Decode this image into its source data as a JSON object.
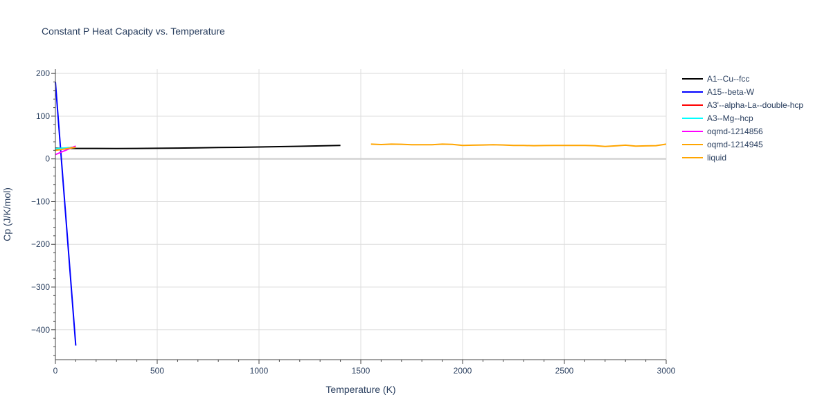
{
  "chart_data": {
    "type": "line",
    "title": "Constant P Heat Capacity vs. Temperature",
    "xlabel": "Temperature (K)",
    "ylabel": "Cp (J/K/mol)",
    "xlim": [
      0,
      3000
    ],
    "ylim": [
      -470,
      210
    ],
    "x_ticks": [
      0,
      500,
      1000,
      1500,
      2000,
      2500,
      3000
    ],
    "x_tick_labels": [
      "0",
      "500",
      "1000",
      "1500",
      "2000",
      "2500",
      "3000"
    ],
    "y_ticks": [
      -400,
      -300,
      -200,
      -100,
      0,
      100,
      200
    ],
    "y_tick_labels": [
      "−400",
      "−300",
      "−200",
      "−100",
      "0",
      "100",
      "200"
    ],
    "grid": true,
    "legend_position": "right",
    "series": [
      {
        "name": "A1--Cu--fcc",
        "color": "#000000",
        "x": [
          0,
          100,
          200,
          300,
          400,
          500,
          600,
          700,
          800,
          900,
          1000,
          1100,
          1200,
          1300,
          1400
        ],
        "y": [
          25,
          24.5,
          24.4,
          24.3,
          24.4,
          24.8,
          25.3,
          25.9,
          26.5,
          27.1,
          27.8,
          28.6,
          29.5,
          30.5,
          31.5
        ]
      },
      {
        "name": "A15--beta-W",
        "color": "#0000ff",
        "x": [
          0,
          100
        ],
        "y": [
          180,
          -437
        ]
      },
      {
        "name": "A3'--alpha-La--double-hcp",
        "color": "#ff0000",
        "x": [
          0,
          100
        ],
        "y": [
          22,
          28
        ]
      },
      {
        "name": "A3--Mg--hcp",
        "color": "#00ffff",
        "x": [
          0,
          100
        ],
        "y": [
          24,
          27
        ]
      },
      {
        "name": "oqmd-1214856",
        "color": "#ff00ff",
        "x": [
          0,
          100
        ],
        "y": [
          10,
          30
        ]
      },
      {
        "name": "oqmd-1214945",
        "color": "#ffa500",
        "x": [
          0,
          100
        ],
        "y": [
          20,
          27
        ]
      },
      {
        "name": "liquid",
        "color": "#ffa500",
        "x": [
          1550,
          1600,
          1650,
          1700,
          1750,
          1800,
          1850,
          1900,
          1950,
          2000,
          2050,
          2100,
          2150,
          2200,
          2250,
          2300,
          2350,
          2400,
          2450,
          2500,
          2550,
          2600,
          2650,
          2700,
          2750,
          2800,
          2850,
          2900,
          2950,
          3000
        ],
        "y": [
          34.5,
          33.5,
          34.5,
          34.2,
          33.0,
          33.2,
          33.0,
          34.5,
          34.0,
          31.5,
          32.0,
          32.5,
          33.0,
          32.5,
          31.5,
          31.5,
          31.0,
          31.2,
          31.5,
          31.5,
          31.5,
          31.5,
          31.0,
          29.0,
          30.5,
          32.0,
          30.0,
          30.5,
          31.0,
          34.5
        ]
      }
    ]
  }
}
